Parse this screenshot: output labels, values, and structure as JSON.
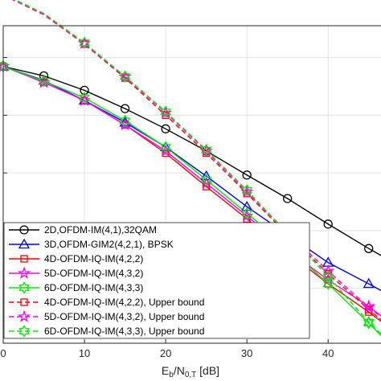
{
  "chart_data": {
    "type": "line",
    "title": "",
    "xlabel": {
      "base": "E",
      "sub1": "b",
      "mid": "/N",
      "sub2": "0,T",
      "unit": " [dB]"
    },
    "ylabel": "",
    "xlim": [
      0,
      47.5
    ],
    "ylim_log10": [
      -5.95,
      -0.45
    ],
    "y_scale": "log",
    "grid": true,
    "legend_position": "bottom-left",
    "x_ticks": [
      0,
      10,
      20,
      30,
      40
    ],
    "x_tick_labels": [
      "0",
      "10",
      "20",
      "30",
      "40"
    ],
    "series": [
      {
        "name": "2D,OFDM-IM(4,1),32QAM",
        "color": "#000000",
        "dash": false,
        "marker": "circle",
        "x": [
          0,
          5,
          10,
          15,
          20,
          25,
          30,
          35,
          40,
          45,
          47.5
        ],
        "y": [
          0.07,
          0.048,
          0.027,
          0.013,
          0.0058,
          0.0024,
          0.00092,
          0.00036,
          0.00013,
          4.9e-05,
          3.1e-05
        ]
      },
      {
        "name": "3D,OFDM-GIM2(4,2,1), BPSK",
        "color": "#0000ff",
        "dash": false,
        "marker": "triangle",
        "x": [
          0,
          5,
          10,
          15,
          20,
          25,
          30,
          35,
          40,
          45,
          47.5
        ],
        "y": [
          0.07,
          0.04,
          0.018,
          0.0075,
          0.0028,
          0.00088,
          0.00026,
          8.5e-05,
          2.8e-05,
          1.2e-05,
          7.7e-06
        ]
      },
      {
        "name": "4D-OFDM-IQ-IM(4,2,2)",
        "color": "#ff0000",
        "dash": false,
        "marker": "square",
        "x": [
          0,
          5,
          10,
          15,
          20,
          25,
          30,
          35,
          40,
          45,
          47.5
        ],
        "y": [
          0.07,
          0.037,
          0.018,
          0.0068,
          0.0022,
          0.00058,
          0.00016,
          4.2e-05,
          1.2e-05,
          3.9e-06,
          2.1e-06
        ]
      },
      {
        "name": "5D-OFDM-IQ-IM(4,3,2)",
        "color": "#ff00ff",
        "dash": false,
        "marker": "star",
        "x": [
          0,
          5,
          10,
          15,
          20,
          25,
          30,
          35,
          40,
          45,
          47.5
        ],
        "y": [
          0.07,
          0.037,
          0.018,
          0.0068,
          0.0024,
          0.00066,
          0.00018,
          4.6e-05,
          1.4e-05,
          4.9e-06,
          2.6e-06
        ]
      },
      {
        "name": "6D-OFDM-IQ-IM(4,3,3)",
        "color": "#00ee00",
        "dash": false,
        "marker": "hexagram",
        "x": [
          0,
          5,
          10,
          15,
          20,
          25,
          30,
          35,
          40,
          45,
          47.5
        ],
        "y": [
          0.07,
          0.039,
          0.02,
          0.008,
          0.0028,
          0.00076,
          0.0002,
          5.2e-05,
          1.2e-05,
          2.5e-06,
          1.1e-06
        ]
      },
      {
        "name": "4D-OFDM-IQ-IM(4,2,2), Upper bound",
        "color": "#ff0000",
        "dash": true,
        "marker": "square",
        "x": [
          0,
          5,
          10,
          15,
          20,
          25,
          30,
          35,
          40,
          45,
          47.5
        ],
        "y": [
          1.2,
          0.55,
          0.17,
          0.044,
          0.01,
          0.0022,
          0.00044,
          8.5e-05,
          1.8e-05,
          4.3e-06,
          2.2e-06
        ]
      },
      {
        "name": "5D-OFDM-IQ-IM(4,3,2), Upper bound",
        "color": "#ff00ff",
        "dash": true,
        "marker": "star",
        "x": [
          0,
          5,
          10,
          15,
          20,
          25,
          30,
          35,
          40,
          45,
          47.5
        ],
        "y": [
          1.2,
          0.56,
          0.175,
          0.046,
          0.011,
          0.0024,
          0.00047,
          9.2e-05,
          2e-05,
          4.7e-06,
          2.5e-06
        ]
      },
      {
        "name": "6D-OFDM-IQ-IM(4,3,3), Upper bound",
        "color": "#00ee00",
        "dash": true,
        "marker": "hexagram",
        "x": [
          0,
          5,
          10,
          15,
          20,
          25,
          30,
          35,
          40,
          45,
          47.5
        ],
        "y": [
          1.25,
          0.58,
          0.18,
          0.047,
          0.0115,
          0.0025,
          0.0005,
          9e-05,
          1.6e-05,
          2.6e-06,
          1.2e-06
        ]
      }
    ]
  }
}
